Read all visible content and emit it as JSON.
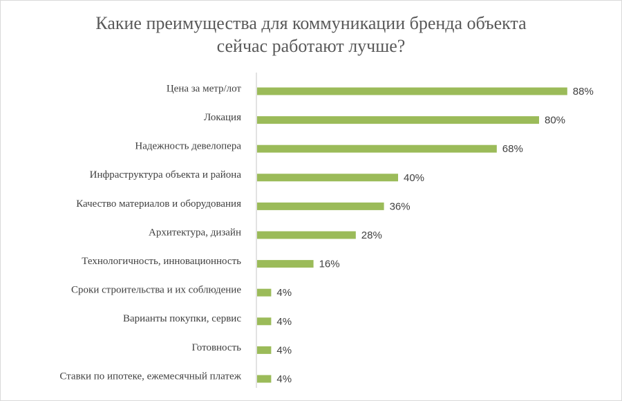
{
  "colors": {
    "bar": "#9bbb59",
    "axis": "#d9d9d9",
    "label_text": "#404040",
    "value_text": "#404040",
    "title_text": "#595959",
    "frame": "#d9d9d9"
  },
  "chart_data": {
    "type": "bar",
    "orientation": "horizontal",
    "title_lines": [
      "Какие преимущества для коммуникации бренда объекта",
      "сейчас работают лучше?"
    ],
    "xlabel": "",
    "ylabel": "",
    "grid": false,
    "legend": "none",
    "value_format": "percent",
    "xlim": [
      0,
      100
    ],
    "categories": [
      "Цена за метр/лот",
      "Локация",
      "Надежность девелопера",
      "Инфраструктура объекта и района",
      "Качество материалов и оборудования",
      "Архитектура, дизайн",
      "Технологичность, инновационность",
      "Сроки строительства и их соблюдение",
      "Варианты покупки, сервис",
      "Готовность",
      "Ставки по ипотеке, ежемесячный платеж"
    ],
    "values": [
      88,
      80,
      68,
      40,
      36,
      28,
      16,
      4,
      4,
      4,
      4
    ],
    "value_labels": [
      "88%",
      "80%",
      "68%",
      "40%",
      "36%",
      "28%",
      "16%",
      "4%",
      "4%",
      "4%",
      "4%"
    ]
  }
}
